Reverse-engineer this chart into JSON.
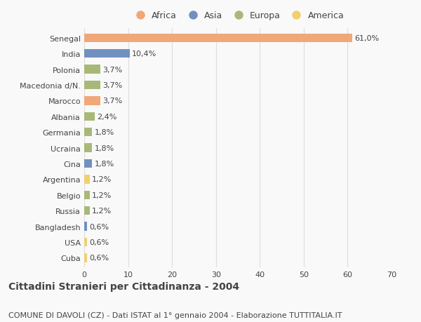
{
  "categories": [
    "Senegal",
    "India",
    "Polonia",
    "Macedonia d/N.",
    "Marocco",
    "Albania",
    "Germania",
    "Ucraina",
    "Cina",
    "Argentina",
    "Belgio",
    "Russia",
    "Bangladesh",
    "USA",
    "Cuba"
  ],
  "values": [
    61.0,
    10.4,
    3.7,
    3.7,
    3.7,
    2.4,
    1.8,
    1.8,
    1.8,
    1.2,
    1.2,
    1.2,
    0.6,
    0.6,
    0.6
  ],
  "labels": [
    "61,0%",
    "10,4%",
    "3,7%",
    "3,7%",
    "3,7%",
    "2,4%",
    "1,8%",
    "1,8%",
    "1,8%",
    "1,2%",
    "1,2%",
    "1,2%",
    "0,6%",
    "0,6%",
    "0,6%"
  ],
  "colors": [
    "#F0A878",
    "#7090C0",
    "#A8B878",
    "#A8B878",
    "#F0A878",
    "#A8B878",
    "#A8B878",
    "#A8B878",
    "#7090C0",
    "#F0D070",
    "#A8B878",
    "#A8B878",
    "#7090C0",
    "#F0D070",
    "#F0D070"
  ],
  "legend_labels": [
    "Africa",
    "Asia",
    "Europa",
    "America"
  ],
  "legend_colors": [
    "#F0A878",
    "#7090C0",
    "#A8B878",
    "#F0D070"
  ],
  "xlim": [
    0,
    70
  ],
  "xticks": [
    0,
    10,
    20,
    30,
    40,
    50,
    60,
    70
  ],
  "title": "Cittadini Stranieri per Cittadinanza - 2004",
  "subtitle": "COMUNE DI DAVOLI (CZ) - Dati ISTAT al 1° gennaio 2004 - Elaborazione TUTTITALIA.IT",
  "background_color": "#f9f9f9",
  "grid_color": "#dddddd",
  "text_color": "#444444",
  "title_fontsize": 10,
  "subtitle_fontsize": 8,
  "tick_fontsize": 8,
  "label_fontsize": 8,
  "legend_fontsize": 9
}
